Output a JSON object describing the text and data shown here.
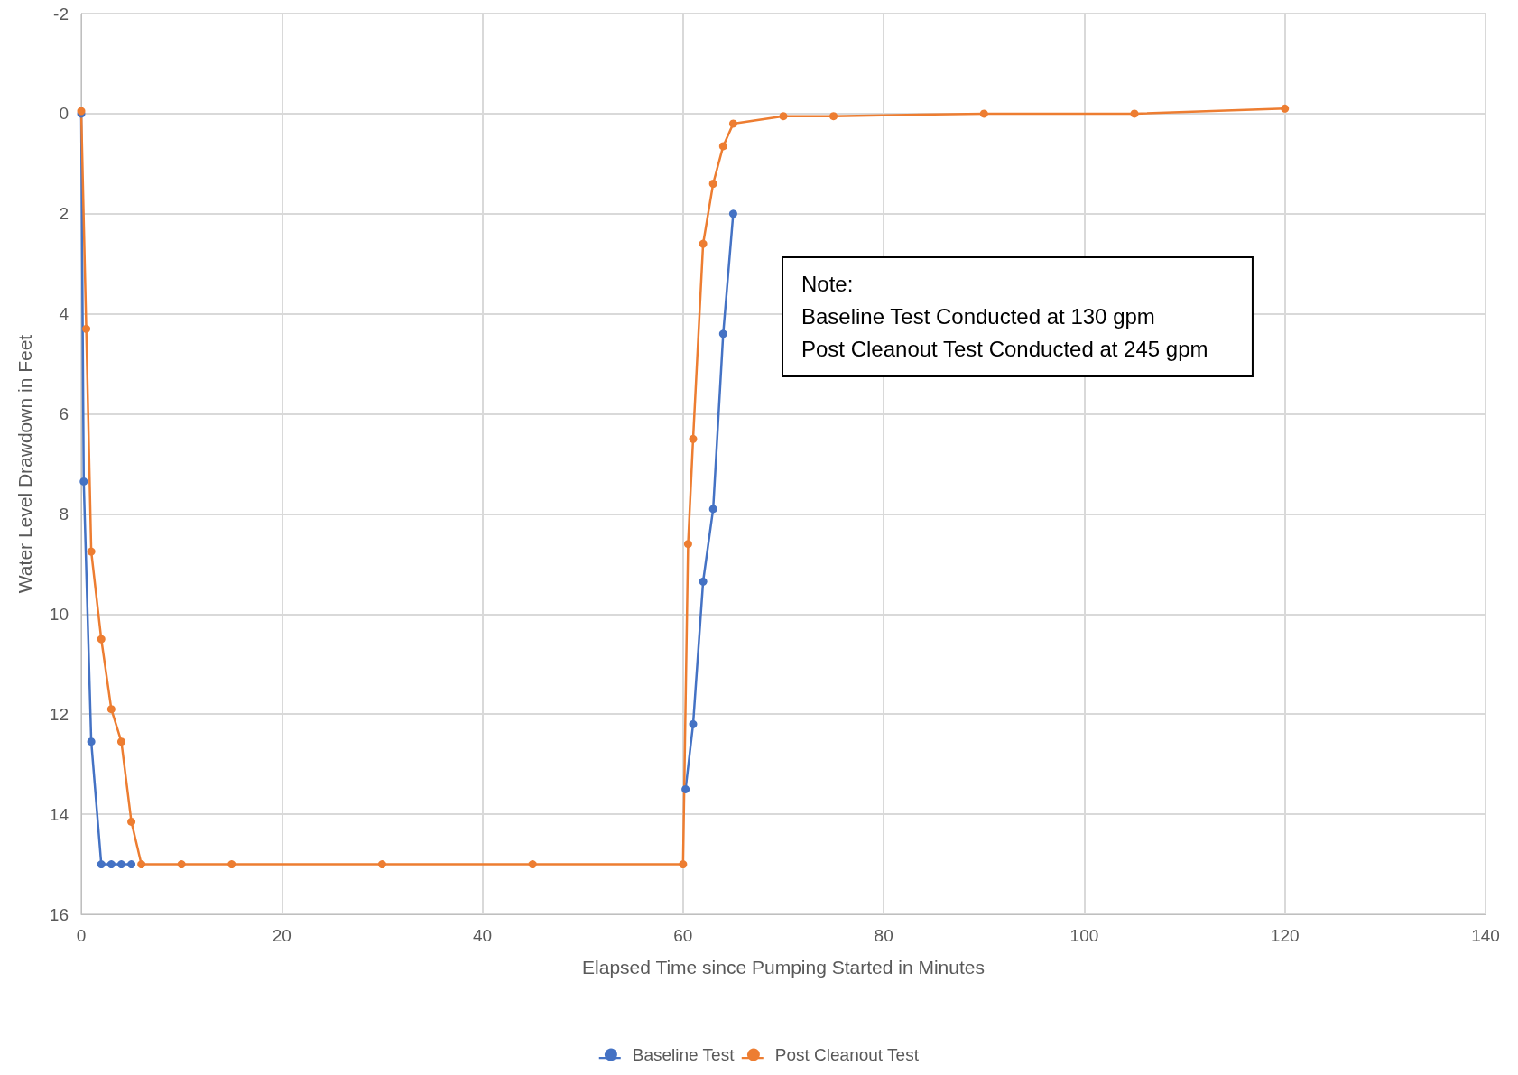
{
  "chart_data": {
    "type": "line",
    "xlabel": "Elapsed Time since Pumping Started in Minutes",
    "ylabel": "Water Level Drawdown in Feet",
    "xlim": [
      0,
      140
    ],
    "xticks": [
      0,
      20,
      40,
      60,
      80,
      100,
      120,
      140
    ],
    "ylim": [
      16,
      -2
    ],
    "yticks": [
      -2,
      0,
      2,
      4,
      6,
      8,
      10,
      12,
      14,
      16
    ],
    "grid": true,
    "legend": "bottom",
    "marker": "circle",
    "line_style": "solid",
    "annotations": [
      "Note:\nBaseline Test Conducted at 130 gpm\nPost Cleanout Test Conducted at 245 gpm"
    ],
    "series": [
      {
        "name": "Baseline Test",
        "color": "#4472c4",
        "x": [
          0,
          0.25,
          1,
          2,
          3,
          4,
          5,
          10,
          15,
          30,
          45,
          60,
          60.25,
          61,
          62,
          63,
          64,
          65
        ],
        "values": [
          0,
          7.35,
          12.55,
          15,
          15,
          15,
          15,
          null,
          null,
          null,
          null,
          null,
          13.5,
          12.2,
          9.35,
          7.9,
          4.4,
          2
        ]
      },
      {
        "name": "Post Cleanout Test",
        "color": "#ed7d31",
        "x": [
          0,
          0.5,
          1,
          2,
          3,
          4,
          5,
          6,
          10,
          15,
          30,
          45,
          60,
          60.5,
          61,
          62,
          63,
          64,
          65,
          70,
          75,
          90,
          105,
          120
        ],
        "values": [
          -0.05,
          4.3,
          8.75,
          10.5,
          11.9,
          12.55,
          14.15,
          15,
          15,
          15,
          15,
          15,
          15,
          8.6,
          6.5,
          2.6,
          1.4,
          0.65,
          0.2,
          0.05,
          0.05,
          0,
          0,
          -0.1
        ]
      }
    ]
  }
}
